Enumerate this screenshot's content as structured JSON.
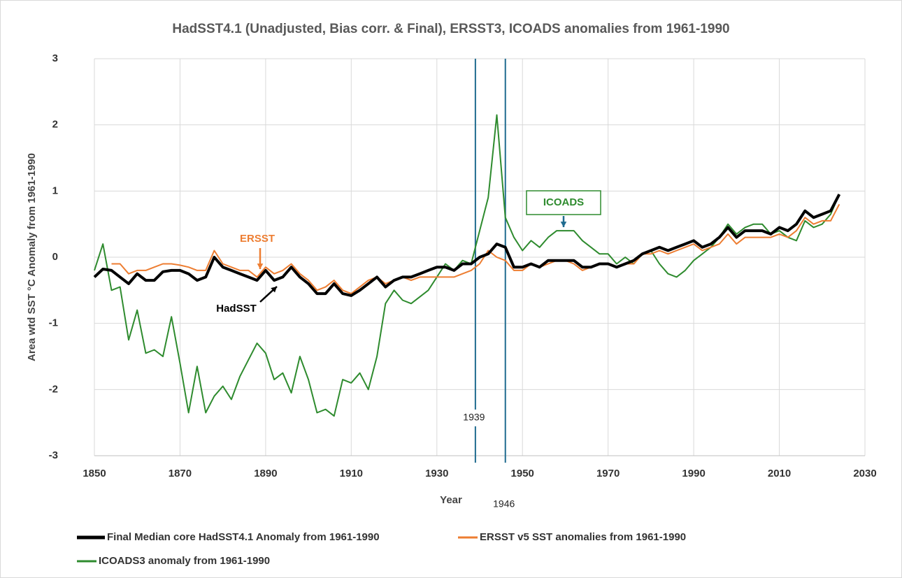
{
  "chart_data": {
    "type": "line",
    "title": "HadSST4.1 (Unadjusted, Bias corr. & Final), ERSST3, ICOADS anomalies from 1961-1990",
    "xlabel": "Year",
    "ylabel": "Area wtd SST °C Anomaly from 1961-1990",
    "x": [
      1850,
      1852,
      1854,
      1856,
      1858,
      1860,
      1862,
      1864,
      1866,
      1868,
      1870,
      1872,
      1874,
      1876,
      1878,
      1880,
      1882,
      1884,
      1886,
      1888,
      1890,
      1892,
      1894,
      1896,
      1898,
      1900,
      1902,
      1904,
      1906,
      1908,
      1910,
      1912,
      1914,
      1916,
      1918,
      1920,
      1922,
      1924,
      1926,
      1928,
      1930,
      1932,
      1934,
      1936,
      1938,
      1940,
      1942,
      1944,
      1946,
      1948,
      1950,
      1952,
      1954,
      1956,
      1958,
      1960,
      1962,
      1964,
      1966,
      1968,
      1970,
      1972,
      1974,
      1976,
      1978,
      1980,
      1982,
      1984,
      1986,
      1988,
      1990,
      1992,
      1994,
      1996,
      1998,
      2000,
      2002,
      2004,
      2006,
      2008,
      2010,
      2012,
      2014,
      2016,
      2018,
      2020,
      2022,
      2024
    ],
    "series": [
      {
        "name": "Final Median core HadSST4.1 Anomaly from 1961-1990",
        "color": "#000000",
        "width": 4,
        "values": [
          -0.3,
          -0.18,
          -0.2,
          -0.3,
          -0.4,
          -0.25,
          -0.35,
          -0.35,
          -0.22,
          -0.2,
          -0.2,
          -0.25,
          -0.35,
          -0.3,
          0.0,
          -0.15,
          -0.2,
          -0.25,
          -0.3,
          -0.35,
          -0.2,
          -0.35,
          -0.3,
          -0.15,
          -0.3,
          -0.4,
          -0.55,
          -0.55,
          -0.4,
          -0.55,
          -0.58,
          -0.5,
          -0.4,
          -0.3,
          -0.45,
          -0.35,
          -0.3,
          -0.3,
          -0.25,
          -0.2,
          -0.15,
          -0.15,
          -0.2,
          -0.1,
          -0.1,
          0.0,
          0.05,
          0.2,
          0.15,
          -0.15,
          -0.15,
          -0.1,
          -0.15,
          -0.05,
          -0.05,
          -0.05,
          -0.05,
          -0.15,
          -0.15,
          -0.1,
          -0.1,
          -0.15,
          -0.1,
          -0.05,
          0.05,
          0.1,
          0.15,
          0.1,
          0.15,
          0.2,
          0.25,
          0.15,
          0.2,
          0.3,
          0.45,
          0.3,
          0.4,
          0.4,
          0.4,
          0.35,
          0.45,
          0.4,
          0.5,
          0.7,
          0.6,
          0.65,
          0.7,
          0.95
        ]
      },
      {
        "name": "ERSST v5 SST anomalies from 1961-1990",
        "color": "#ed7d31",
        "width": 2,
        "values": [
          null,
          null,
          -0.1,
          -0.1,
          -0.25,
          -0.2,
          -0.2,
          -0.15,
          -0.1,
          -0.1,
          -0.12,
          -0.15,
          -0.2,
          -0.2,
          0.1,
          -0.1,
          -0.15,
          -0.2,
          -0.2,
          -0.3,
          -0.15,
          -0.25,
          -0.2,
          -0.1,
          -0.25,
          -0.35,
          -0.5,
          -0.45,
          -0.35,
          -0.5,
          -0.55,
          -0.45,
          -0.35,
          -0.3,
          -0.4,
          -0.35,
          -0.3,
          -0.35,
          -0.3,
          -0.3,
          -0.3,
          -0.3,
          -0.3,
          -0.25,
          -0.2,
          -0.1,
          0.1,
          0.0,
          -0.05,
          -0.2,
          -0.2,
          -0.1,
          -0.15,
          -0.1,
          -0.05,
          -0.05,
          -0.1,
          -0.2,
          -0.15,
          -0.1,
          -0.1,
          -0.15,
          -0.1,
          -0.1,
          0.05,
          0.05,
          0.1,
          0.05,
          0.1,
          0.15,
          0.2,
          0.1,
          0.15,
          0.2,
          0.35,
          0.2,
          0.3,
          0.3,
          0.3,
          0.3,
          0.35,
          0.3,
          0.4,
          0.6,
          0.5,
          0.55,
          0.55,
          0.8
        ]
      },
      {
        "name": "ICOADS3 anomaly from 1961-1990",
        "color": "#2e8b2e",
        "width": 2,
        "values": [
          -0.2,
          0.2,
          -0.5,
          -0.45,
          -1.25,
          -0.8,
          -1.45,
          -1.4,
          -1.5,
          -0.9,
          -1.6,
          -2.35,
          -1.65,
          -2.35,
          -2.1,
          -1.95,
          -2.15,
          -1.8,
          -1.55,
          -1.3,
          -1.45,
          -1.85,
          -1.75,
          -2.05,
          -1.5,
          -1.85,
          -2.35,
          -2.3,
          -2.4,
          -1.85,
          -1.9,
          -1.75,
          -2.0,
          -1.5,
          -0.7,
          -0.5,
          -0.65,
          -0.7,
          -0.6,
          -0.5,
          -0.3,
          -0.1,
          -0.2,
          -0.05,
          -0.1,
          0.4,
          0.9,
          2.15,
          0.6,
          0.3,
          0.1,
          0.25,
          0.15,
          0.3,
          0.4,
          0.4,
          0.4,
          0.25,
          0.15,
          0.05,
          0.05,
          -0.1,
          0.0,
          -0.1,
          0.05,
          0.1,
          -0.1,
          -0.25,
          -0.3,
          -0.2,
          -0.05,
          0.05,
          0.15,
          0.3,
          0.5,
          0.35,
          0.45,
          0.5,
          0.5,
          0.35,
          0.4,
          0.3,
          0.25,
          0.55,
          0.45,
          0.5,
          0.65,
          0.95
        ]
      }
    ],
    "xlim": [
      1850,
      2030
    ],
    "xticks": [
      1850,
      1870,
      1890,
      1910,
      1930,
      1950,
      1970,
      1990,
      2010,
      2030
    ],
    "ylim": [
      -3,
      3
    ],
    "yticks": [
      -3,
      -2,
      -1,
      0,
      1,
      2,
      3
    ],
    "grid": true,
    "legend": "bottom",
    "vlines": [
      1939,
      1946
    ],
    "vline_color": "#1f6b8f",
    "annotations": [
      {
        "text": "ERSST",
        "color": "#ed7d31"
      },
      {
        "text": "HadSST",
        "color": "#000000"
      },
      {
        "text": "ICOADS",
        "color": "#2e8b2e"
      }
    ]
  }
}
